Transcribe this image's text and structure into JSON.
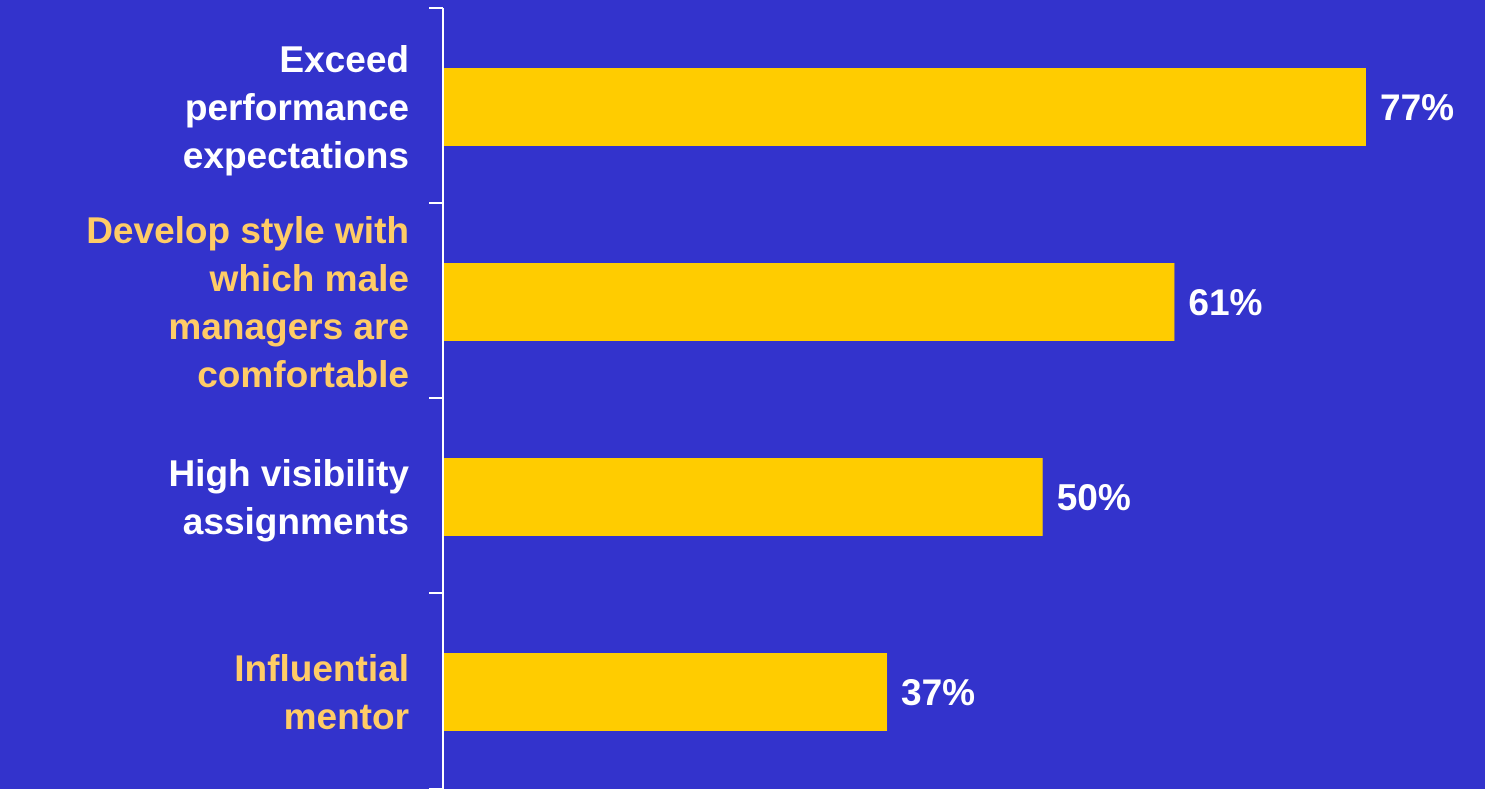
{
  "chart_data": {
    "type": "bar",
    "orientation": "horizontal",
    "categories": [
      "Exceed performance expectations",
      "Develop style with which male managers are comfortable",
      "High visibility assignments",
      "Influential mentor"
    ],
    "category_lines": [
      [
        "Exceed",
        "performance",
        "expectations"
      ],
      [
        "Develop style with",
        "which male",
        "managers are",
        "comfortable"
      ],
      [
        "High visibility",
        "assignments"
      ],
      [
        "Influential",
        "mentor"
      ]
    ],
    "values": [
      77,
      61,
      50,
      37
    ],
    "value_labels": [
      "77%",
      "61%",
      "50%",
      "37%"
    ],
    "title": "",
    "xlabel": "",
    "ylabel": "",
    "xlim": [
      0,
      100
    ],
    "grid": false,
    "legend": "none"
  },
  "colors": {
    "background": "#3333cc",
    "bar": "#ffcc00",
    "axis": "#ffffff",
    "value_text": "#ffffff",
    "label_white": "#ffffff",
    "label_gold": "#ffcc66",
    "category_label_colors": [
      "#ffffff",
      "#ffcc66",
      "#ffffff",
      "#ffcc66"
    ]
  }
}
